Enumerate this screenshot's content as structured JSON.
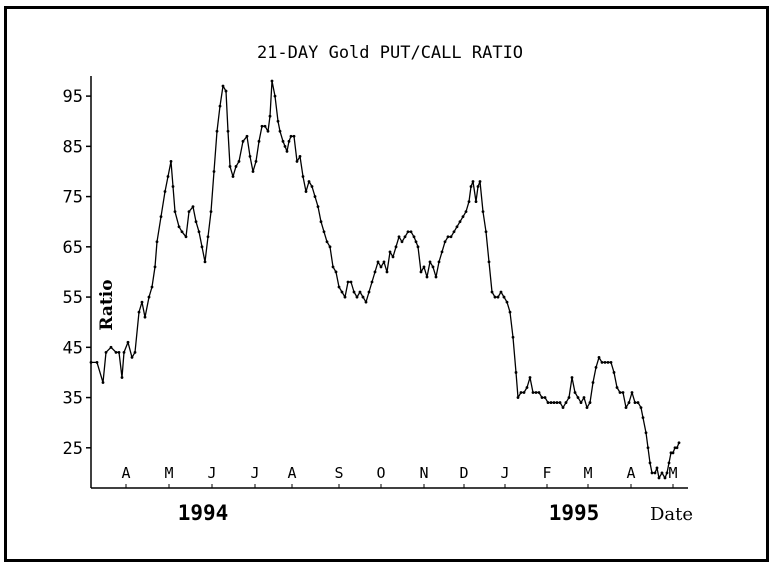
{
  "chart_data": {
    "type": "line",
    "title": "21-DAY Gold PUT/CALL RATIO",
    "ylabel": "Ratio",
    "xlabel": "Date",
    "ylim": [
      17,
      99
    ],
    "xlim": [
      0,
      595
    ],
    "yticks": [
      25,
      35,
      45,
      55,
      65,
      75,
      85,
      95
    ],
    "months": [
      {
        "label": "A",
        "x": 35
      },
      {
        "label": "M",
        "x": 78
      },
      {
        "label": "J",
        "x": 121
      },
      {
        "label": "J",
        "x": 164
      },
      {
        "label": "A",
        "x": 201
      },
      {
        "label": "S",
        "x": 248
      },
      {
        "label": "O",
        "x": 290
      },
      {
        "label": "N",
        "x": 333
      },
      {
        "label": "D",
        "x": 373
      },
      {
        "label": "J",
        "x": 414
      },
      {
        "label": "F",
        "x": 456
      },
      {
        "label": "M",
        "x": 497
      },
      {
        "label": "A",
        "x": 540
      },
      {
        "label": "M",
        "x": 582
      }
    ],
    "years": [
      {
        "label": "1994",
        "x": 112
      },
      {
        "label": "1995",
        "x": 483
      }
    ],
    "series": [
      {
        "values": [
          [
            0,
            42
          ],
          [
            6,
            42
          ],
          [
            12,
            38
          ],
          [
            15,
            44
          ],
          [
            20,
            45
          ],
          [
            25,
            44
          ],
          [
            28,
            44
          ],
          [
            31,
            39
          ],
          [
            33,
            44
          ],
          [
            37,
            46
          ],
          [
            41,
            43
          ],
          [
            44,
            44
          ],
          [
            48,
            52
          ],
          [
            51,
            54
          ],
          [
            54,
            51
          ],
          [
            58,
            55
          ],
          [
            61,
            57
          ],
          [
            64,
            61
          ],
          [
            66,
            66
          ],
          [
            70,
            71
          ],
          [
            74,
            76
          ],
          [
            77,
            79
          ],
          [
            80,
            82
          ],
          [
            82,
            77
          ],
          [
            84,
            72
          ],
          [
            88,
            69
          ],
          [
            91,
            68
          ],
          [
            95,
            67
          ],
          [
            98,
            72
          ],
          [
            102,
            73
          ],
          [
            105,
            70
          ],
          [
            108,
            68
          ],
          [
            111,
            65
          ],
          [
            114,
            62
          ],
          [
            117,
            67
          ],
          [
            120,
            72
          ],
          [
            123,
            80
          ],
          [
            126,
            88
          ],
          [
            129,
            93
          ],
          [
            132,
            97
          ],
          [
            135,
            96
          ],
          [
            137,
            88
          ],
          [
            139,
            81
          ],
          [
            142,
            79
          ],
          [
            145,
            81
          ],
          [
            148,
            82
          ],
          [
            152,
            86
          ],
          [
            156,
            87
          ],
          [
            159,
            83
          ],
          [
            162,
            80
          ],
          [
            165,
            82
          ],
          [
            168,
            86
          ],
          [
            171,
            89
          ],
          [
            174,
            89
          ],
          [
            177,
            88
          ],
          [
            179,
            91
          ],
          [
            181,
            98
          ],
          [
            184,
            95
          ],
          [
            187,
            90
          ],
          [
            189,
            88
          ],
          [
            192,
            86
          ],
          [
            194,
            85
          ],
          [
            196,
            84
          ],
          [
            198,
            86
          ],
          [
            200,
            87
          ],
          [
            203,
            87
          ],
          [
            206,
            82
          ],
          [
            209,
            83
          ],
          [
            212,
            79
          ],
          [
            215,
            76
          ],
          [
            218,
            78
          ],
          [
            221,
            77
          ],
          [
            224,
            75
          ],
          [
            227,
            73
          ],
          [
            230,
            70
          ],
          [
            233,
            68
          ],
          [
            236,
            66
          ],
          [
            239,
            65
          ],
          [
            242,
            61
          ],
          [
            245,
            60
          ],
          [
            248,
            57
          ],
          [
            251,
            56
          ],
          [
            254,
            55
          ],
          [
            257,
            58
          ],
          [
            260,
            58
          ],
          [
            263,
            56
          ],
          [
            266,
            55
          ],
          [
            269,
            56
          ],
          [
            272,
            55
          ],
          [
            275,
            54
          ],
          [
            278,
            56
          ],
          [
            281,
            58
          ],
          [
            284,
            60
          ],
          [
            287,
            62
          ],
          [
            290,
            61
          ],
          [
            293,
            62
          ],
          [
            296,
            60
          ],
          [
            299,
            64
          ],
          [
            302,
            63
          ],
          [
            305,
            65
          ],
          [
            308,
            67
          ],
          [
            311,
            66
          ],
          [
            314,
            67
          ],
          [
            317,
            68
          ],
          [
            320,
            68
          ],
          [
            323,
            67
          ],
          [
            325,
            66
          ],
          [
            327,
            65
          ],
          [
            330,
            60
          ],
          [
            333,
            61
          ],
          [
            336,
            59
          ],
          [
            339,
            62
          ],
          [
            342,
            61
          ],
          [
            345,
            59
          ],
          [
            348,
            62
          ],
          [
            351,
            64
          ],
          [
            354,
            66
          ],
          [
            357,
            67
          ],
          [
            360,
            67
          ],
          [
            363,
            68
          ],
          [
            366,
            69
          ],
          [
            369,
            70
          ],
          [
            372,
            71
          ],
          [
            375,
            72
          ],
          [
            378,
            74
          ],
          [
            380,
            77
          ],
          [
            382,
            78
          ],
          [
            385,
            74
          ],
          [
            387,
            77
          ],
          [
            389,
            78
          ],
          [
            392,
            72
          ],
          [
            395,
            68
          ],
          [
            398,
            62
          ],
          [
            401,
            56
          ],
          [
            404,
            55
          ],
          [
            407,
            55
          ],
          [
            410,
            56
          ],
          [
            413,
            55
          ],
          [
            416,
            54
          ],
          [
            419,
            52
          ],
          [
            422,
            47
          ],
          [
            425,
            40
          ],
          [
            427,
            35
          ],
          [
            430,
            36
          ],
          [
            433,
            36
          ],
          [
            436,
            37
          ],
          [
            439,
            39
          ],
          [
            442,
            36
          ],
          [
            445,
            36
          ],
          [
            448,
            36
          ],
          [
            451,
            35
          ],
          [
            454,
            35
          ],
          [
            457,
            34
          ],
          [
            460,
            34
          ],
          [
            463,
            34
          ],
          [
            466,
            34
          ],
          [
            469,
            34
          ],
          [
            472,
            33
          ],
          [
            475,
            34
          ],
          [
            478,
            35
          ],
          [
            481,
            39
          ],
          [
            484,
            36
          ],
          [
            487,
            35
          ],
          [
            490,
            34
          ],
          [
            493,
            35
          ],
          [
            496,
            33
          ],
          [
            499,
            34
          ],
          [
            502,
            38
          ],
          [
            505,
            41
          ],
          [
            508,
            43
          ],
          [
            511,
            42
          ],
          [
            514,
            42
          ],
          [
            517,
            42
          ],
          [
            520,
            42
          ],
          [
            523,
            40
          ],
          [
            526,
            37
          ],
          [
            529,
            36
          ],
          [
            532,
            36
          ],
          [
            535,
            33
          ],
          [
            538,
            34
          ],
          [
            541,
            36
          ],
          [
            544,
            34
          ],
          [
            547,
            34
          ],
          [
            550,
            33
          ],
          [
            552,
            31
          ],
          [
            555,
            28
          ],
          [
            557,
            25
          ],
          [
            559,
            22
          ],
          [
            561,
            20
          ],
          [
            564,
            20
          ],
          [
            566,
            21
          ],
          [
            568,
            19
          ],
          [
            571,
            20
          ],
          [
            574,
            19
          ],
          [
            576,
            20
          ],
          [
            578,
            22
          ],
          [
            580,
            24
          ],
          [
            582,
            24
          ],
          [
            584,
            25
          ],
          [
            586,
            25
          ],
          [
            588,
            26
          ]
        ]
      }
    ]
  }
}
